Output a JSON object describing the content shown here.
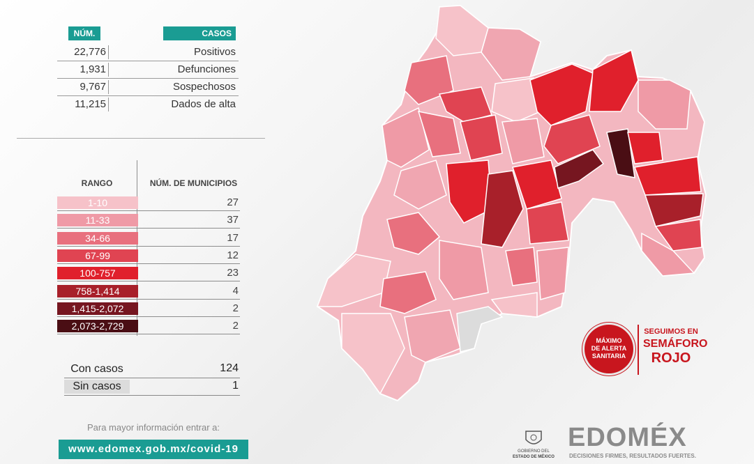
{
  "cases": {
    "col_num": "NÚM.",
    "col_cases": "CASOS",
    "rows": [
      {
        "value": "22,776",
        "label": "Positivos"
      },
      {
        "value": "1,931",
        "label": "Defunciones"
      },
      {
        "value": "9,767",
        "label": "Sospechosos"
      },
      {
        "value": "11,215",
        "label": "Dados de alta"
      }
    ]
  },
  "legend": {
    "col_range": "RANGO",
    "col_count": "NÚM. DE MUNICIPIOS",
    "rows": [
      {
        "range": "1-10",
        "count": "27",
        "color": "#f6c2c9"
      },
      {
        "range": "11-33",
        "count": "37",
        "color": "#ef9aa6"
      },
      {
        "range": "34-66",
        "count": "17",
        "color": "#e8707e"
      },
      {
        "range": "67-99",
        "count": "12",
        "color": "#e04452"
      },
      {
        "range": "100-757",
        "count": "23",
        "color": "#e0202c"
      },
      {
        "range": "758-1,414",
        "count": "4",
        "color": "#a8202a"
      },
      {
        "range": "1,415-2,072",
        "count": "2",
        "color": "#761620"
      },
      {
        "range": "2,073-2,729",
        "count": "2",
        "color": "#4a0e14"
      }
    ]
  },
  "totals": {
    "with_cases_label": "Con casos",
    "with_cases_value": "124",
    "without_cases_label": "Sin casos",
    "without_cases_value": "1",
    "no_cases_color": "#dcdcdc"
  },
  "info": {
    "prompt": "Para mayor información entrar a:",
    "url": "www.edomex.gob.mx/covid-19"
  },
  "alert": {
    "badge_lines": [
      "MÁXIMO",
      "DE ALERTA",
      "SANITARIA"
    ],
    "line1": "SEGUIMOS EN",
    "line2": "SEMÁFORO",
    "line3": "ROJO",
    "color": "#c8161e"
  },
  "footer": {
    "gov_line1": "GOBIERNO DEL",
    "gov_line2": "ESTADO DE MÉXICO",
    "brand": "EDOMÉX",
    "tagline": "DECISIONES FIRMES, RESULTADOS FUERTES."
  },
  "accent_color": "#1a9c93"
}
